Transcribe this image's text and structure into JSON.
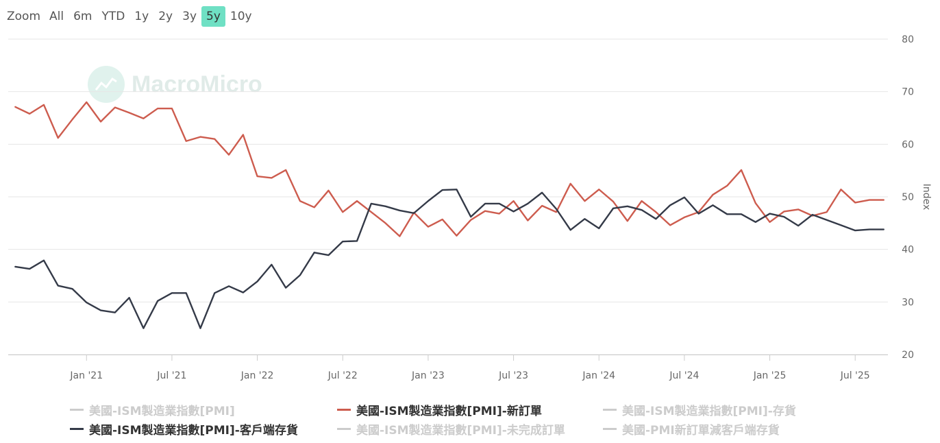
{
  "zoom": {
    "label": "Zoom",
    "buttons": [
      "All",
      "6m",
      "YTD",
      "1y",
      "2y",
      "3y",
      "5y",
      "10y"
    ],
    "active": "5y"
  },
  "watermark": "MacroMicro",
  "colors": {
    "new_orders": "#cd5c4e",
    "customer_inventories": "#343a48",
    "grid": "#e6e6e6",
    "hidden": "#cccccc",
    "active_zoom": "#6fe0c4"
  },
  "chart_data": {
    "type": "line",
    "ylabel": "Index",
    "ylim": [
      20,
      80
    ],
    "yticks": [
      20,
      30,
      40,
      50,
      60,
      70,
      80
    ],
    "xlim": [
      "2020-08",
      "2025-09"
    ],
    "xticks": [
      {
        "date": "2021-01",
        "label": "Jan '21"
      },
      {
        "date": "2021-07",
        "label": "Jul '21"
      },
      {
        "date": "2022-01",
        "label": "Jan '22"
      },
      {
        "date": "2022-07",
        "label": "Jul '22"
      },
      {
        "date": "2023-01",
        "label": "Jan '23"
      },
      {
        "date": "2023-07",
        "label": "Jul '23"
      },
      {
        "date": "2024-01",
        "label": "Jan '24"
      },
      {
        "date": "2024-07",
        "label": "Jul '24"
      },
      {
        "date": "2025-01",
        "label": "Jan '25"
      },
      {
        "date": "2025-07",
        "label": "Jul '25"
      }
    ],
    "x": [
      "2020-08",
      "2020-09",
      "2020-10",
      "2020-11",
      "2020-12",
      "2021-01",
      "2021-02",
      "2021-03",
      "2021-04",
      "2021-05",
      "2021-06",
      "2021-07",
      "2021-08",
      "2021-09",
      "2021-10",
      "2021-11",
      "2021-12",
      "2022-01",
      "2022-02",
      "2022-03",
      "2022-04",
      "2022-05",
      "2022-06",
      "2022-07",
      "2022-08",
      "2022-09",
      "2022-10",
      "2022-11",
      "2022-12",
      "2023-01",
      "2023-02",
      "2023-03",
      "2023-04",
      "2023-05",
      "2023-06",
      "2023-07",
      "2023-08",
      "2023-09",
      "2023-10",
      "2023-11",
      "2023-12",
      "2024-01",
      "2024-02",
      "2024-03",
      "2024-04",
      "2024-05",
      "2024-06",
      "2024-07",
      "2024-08",
      "2024-09",
      "2024-10",
      "2024-11",
      "2024-12",
      "2025-01",
      "2025-02",
      "2025-03",
      "2025-04",
      "2025-05",
      "2025-06",
      "2025-07",
      "2025-08",
      "2025-09"
    ],
    "series": [
      {
        "name": "美國-ISM製造業指數[PMI]-新訂單",
        "color": "#cd5c4e",
        "values": [
          67.1,
          65.8,
          67.5,
          61.2,
          64.7,
          68.0,
          64.3,
          67.0,
          66.0,
          64.9,
          66.8,
          66.8,
          60.6,
          61.4,
          61.0,
          58.0,
          61.8,
          53.9,
          53.6,
          55.1,
          49.2,
          48.0,
          51.2,
          47.1,
          49.2,
          47.1,
          45.0,
          42.5,
          47.0,
          44.3,
          45.7,
          42.6,
          45.6,
          47.3,
          46.8,
          49.2,
          45.5,
          48.3,
          47.1,
          52.5,
          49.2,
          51.4,
          49.1,
          45.4,
          49.2,
          47.1,
          44.6,
          46.1,
          47.1,
          50.4,
          52.1,
          55.1,
          48.8,
          45.2,
          47.2,
          47.6,
          46.4,
          47.1,
          51.4,
          48.9,
          49.4,
          49.4
        ],
        "visible": true
      },
      {
        "name": "美國-ISM製造業指數[PMI]-客戶端存貨",
        "color": "#343a48",
        "values": [
          36.7,
          36.3,
          37.9,
          33.1,
          32.5,
          29.9,
          28.4,
          28.0,
          30.8,
          25.0,
          30.2,
          31.7,
          31.7,
          25.0,
          31.7,
          33.0,
          31.8,
          33.9,
          37.1,
          32.7,
          35.1,
          39.4,
          38.9,
          41.5,
          41.6,
          48.7,
          48.2,
          47.4,
          46.9,
          49.2,
          51.3,
          51.4,
          46.2,
          48.7,
          48.7,
          47.2,
          48.7,
          50.8,
          47.7,
          43.7,
          45.8,
          44.0,
          47.8,
          48.2,
          47.5,
          45.8,
          48.4,
          49.9,
          46.8,
          48.4,
          46.7,
          46.7,
          45.2,
          46.8,
          46.2,
          44.5,
          46.6,
          45.6,
          44.6,
          43.6,
          43.8,
          43.8
        ],
        "visible": true
      }
    ],
    "legend": [
      {
        "label": "美國-ISM製造業指數[PMI]",
        "visible": false
      },
      {
        "label": "美國-ISM製造業指數[PMI]-新訂單",
        "visible": true
      },
      {
        "label": "美國-ISM製造業指數[PMI]-存貨",
        "visible": false
      },
      {
        "label": "美國-ISM製造業指數[PMI]-客戶端存貨",
        "visible": true
      },
      {
        "label": "美國-ISM製造業指數[PMI]-未完成訂單",
        "visible": false
      },
      {
        "label": "美國-PMI新訂單減客戶端存貨",
        "visible": false
      }
    ],
    "legend_placement": "bottom",
    "grid": true
  }
}
